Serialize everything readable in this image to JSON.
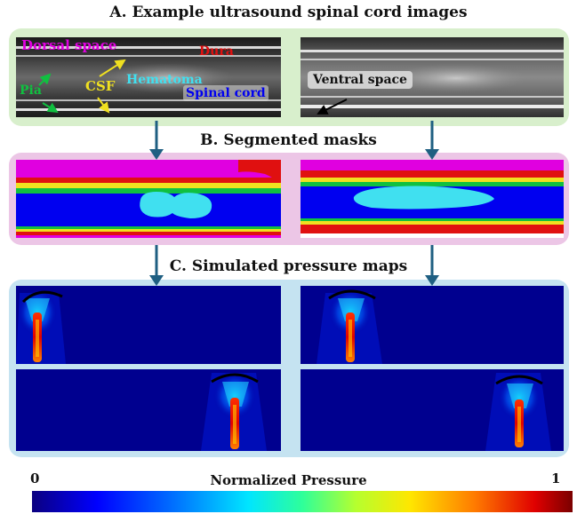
{
  "titles": {
    "a": "A. Example ultrasound spinal cord images",
    "b": "B. Segmented masks",
    "c": "C. Simulated pressure maps"
  },
  "ultrasound_labels": {
    "dorsal_space": "Dorsal space",
    "dura": "Dura",
    "pia": "Pia",
    "csf": "CSF",
    "hematoma": "Hematoma",
    "spinal_cord": "Spinal cord",
    "ventral_space": "Ventral space"
  },
  "colorbar": {
    "title": "Normalized Pressure",
    "min": "0",
    "max": "1"
  },
  "colors": {
    "panel_a_bg": "#d8efcc",
    "panel_b_bg": "#ecc6e6",
    "panel_c_bg": "#c5e3f1",
    "connector": "#1f5f82",
    "dorsal_space": "#e000e0",
    "dura": "#e01010",
    "pia": "#10c040",
    "csf": "#f0e020",
    "hematoma": "#40e0f0",
    "spinal_cord": "#0000f0"
  }
}
